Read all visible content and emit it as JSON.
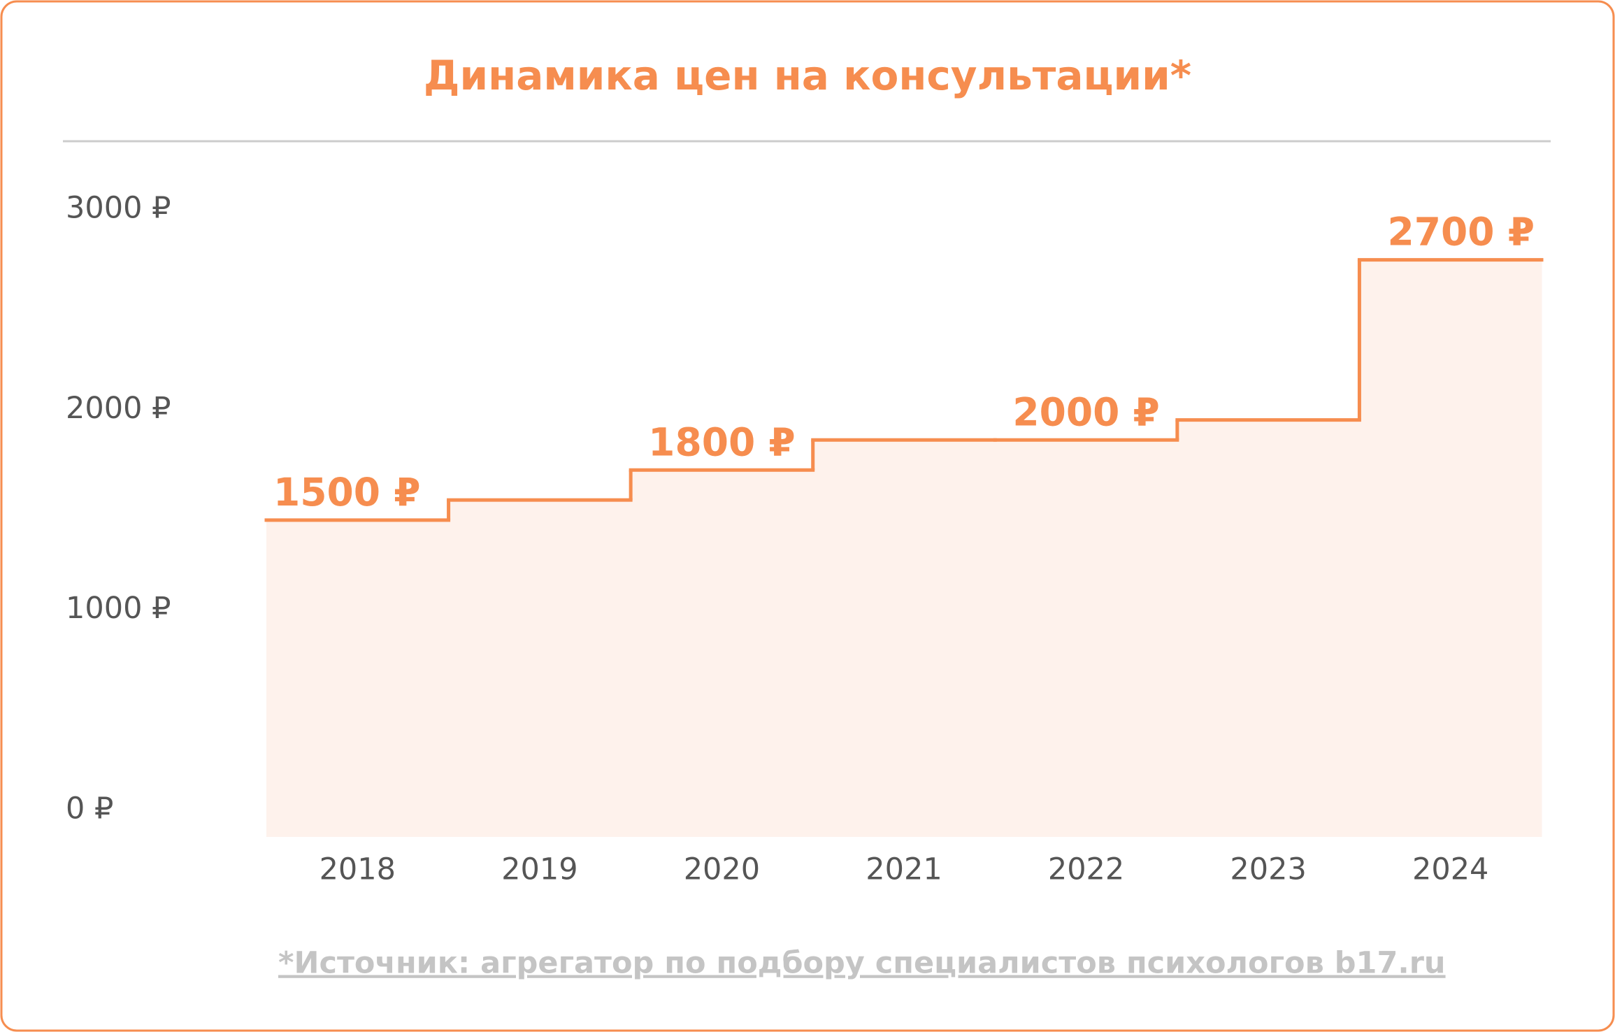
{
  "chart_data": {
    "type": "step",
    "title": "Динамика цен на консультации*",
    "categories": [
      "2018",
      "2019",
      "2020",
      "2021",
      "2022",
      "2023",
      "2024"
    ],
    "values": [
      1450,
      1550,
      1700,
      1850,
      1850,
      1950,
      2750
    ],
    "color": "#f68d4f",
    "area_color": "#fef2ec",
    "ylim": [
      0,
      3000
    ],
    "yticks": [
      {
        "value": 0,
        "label": "0 ₽"
      },
      {
        "value": 1000,
        "label": "1000 ₽"
      },
      {
        "value": 2000,
        "label": "2000 ₽"
      },
      {
        "value": 3000,
        "label": "3000 ₽"
      }
    ],
    "grid": false,
    "annotations": [
      "1500 ₽",
      "1800 ₽",
      "2000 ₽",
      "2700 ₽"
    ],
    "footnote": "*Источник: агрегатор по подбору специалистов психологов b17.ru"
  }
}
